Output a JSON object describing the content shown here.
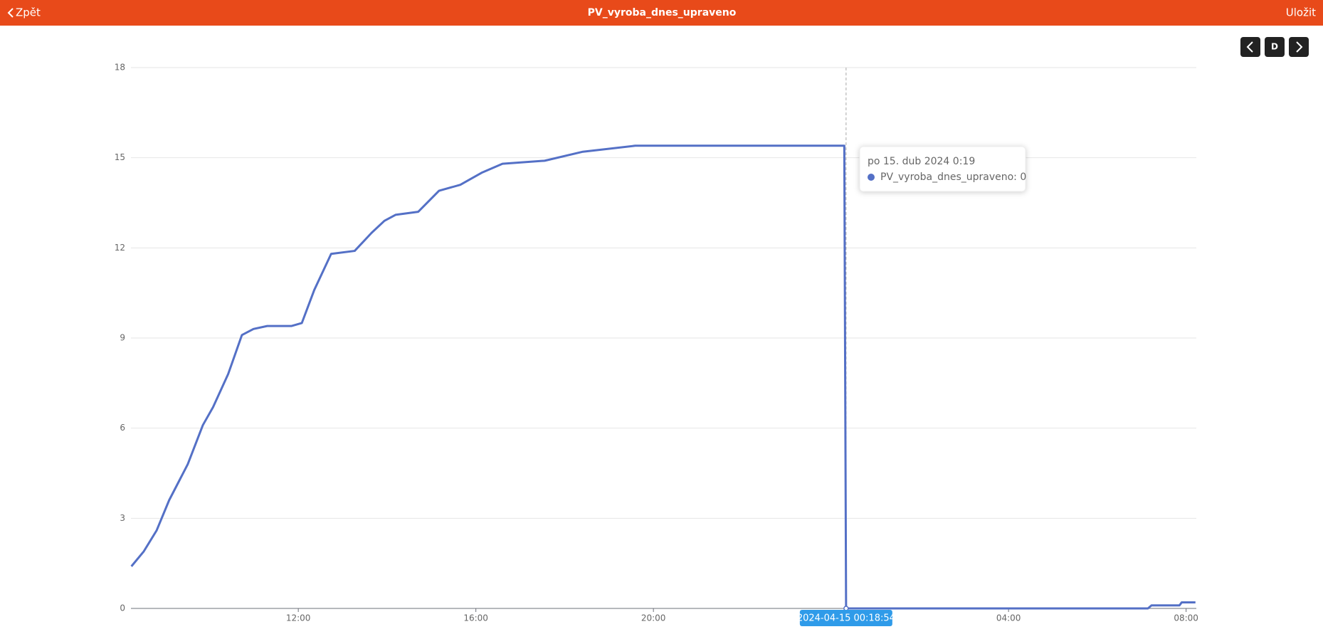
{
  "header": {
    "back": "Zpět",
    "title": "PV_vyroba_dnes_upraveno",
    "save": "Uložit"
  },
  "controls": {
    "period": "D"
  },
  "chart_data": {
    "type": "line",
    "series": [
      {
        "name": "PV_vyroba_dnes_upraveno",
        "color": "#5470c6",
        "x": [
          8.24,
          8.52,
          8.81,
          9.09,
          9.51,
          9.85,
          10.08,
          10.42,
          10.73,
          10.99,
          11.3,
          11.85,
          12.08,
          12.36,
          12.74,
          13.27,
          13.65,
          13.94,
          14.19,
          14.7,
          15.17,
          15.65,
          16.13,
          16.6,
          17.55,
          18.41,
          19.59,
          24.3,
          24.34,
          31.14,
          31.22,
          31.85,
          31.9,
          32.21
        ],
        "values": [
          1.4,
          1.9,
          2.6,
          3.6,
          4.8,
          6.1,
          6.7,
          7.8,
          9.1,
          9.3,
          9.4,
          9.4,
          9.5,
          10.6,
          11.8,
          11.9,
          12.5,
          12.9,
          13.1,
          13.2,
          13.9,
          14.1,
          14.5,
          14.8,
          14.9,
          15.2,
          15.4,
          15.4,
          0,
          0,
          0.1,
          0.1,
          0.2,
          0.2
        ]
      }
    ],
    "xlim": [
      8.23,
      32.23
    ],
    "xticks": [
      {
        "value": 12,
        "label": "12:00"
      },
      {
        "value": 16,
        "label": "16:00"
      },
      {
        "value": 20,
        "label": "20:00"
      },
      {
        "value": 28,
        "label": "04:00"
      },
      {
        "value": 32,
        "label": "08:00"
      }
    ],
    "ylim": [
      0,
      18
    ],
    "yticks": [
      0,
      3,
      6,
      9,
      12,
      15,
      18
    ],
    "grid": true,
    "pointer_x": 24.34,
    "pointer_label": "2024-04-15 00:18:54",
    "tooltip": {
      "title": "po 15. dub 2024 0:19",
      "label": "PV_vyroba_dnes_upraveno: 0"
    }
  }
}
